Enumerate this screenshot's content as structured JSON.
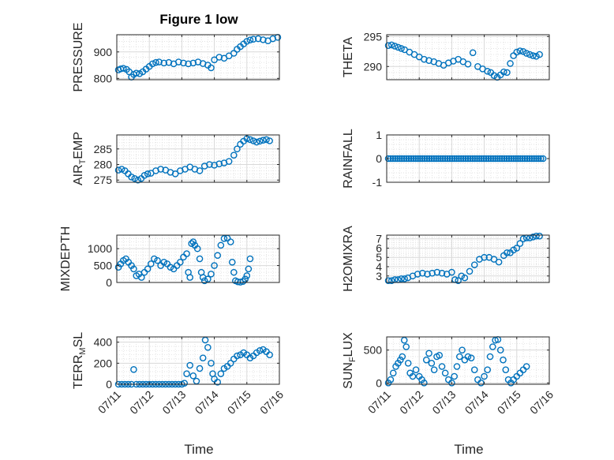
{
  "figure": {
    "title": "Figure 1 low",
    "xlabel": "Time",
    "marker_color": "#0072bd",
    "grid_color": "#d9d9d9",
    "axis_color": "#262626"
  },
  "chart_data": [
    {
      "type": "scatter",
      "ylabel": "PRESSURE",
      "ylim": [
        795,
        965
      ],
      "yticks": [
        800,
        900
      ],
      "xlim": [
        0,
        5
      ],
      "xticks": [],
      "grid": true,
      "x": [
        0.05,
        0.12,
        0.2,
        0.3,
        0.38,
        0.45,
        0.52,
        0.6,
        0.7,
        0.8,
        0.9,
        1.0,
        1.1,
        1.2,
        1.3,
        1.45,
        1.6,
        1.75,
        1.9,
        2.05,
        2.2,
        2.35,
        2.5,
        2.65,
        2.8,
        2.9,
        3.0,
        3.15,
        3.3,
        3.45,
        3.6,
        3.7,
        3.8,
        3.9,
        4.0,
        4.1,
        4.2,
        4.35,
        4.5,
        4.65,
        4.8,
        4.95
      ],
      "y": [
        832,
        836,
        838,
        834,
        825,
        805,
        815,
        820,
        818,
        825,
        835,
        845,
        855,
        860,
        862,
        858,
        860,
        855,
        862,
        858,
        855,
        858,
        862,
        856,
        850,
        840,
        870,
        880,
        876,
        885,
        895,
        910,
        920,
        930,
        940,
        945,
        948,
        950,
        946,
        942,
        950,
        955
      ]
    },
    {
      "type": "scatter",
      "ylabel": "THETA",
      "ylim": [
        287.8,
        295.3
      ],
      "yticks": [
        290,
        295
      ],
      "xlim": [
        0,
        5
      ],
      "xticks": [],
      "grid": true,
      "x": [
        0.05,
        0.15,
        0.25,
        0.35,
        0.45,
        0.55,
        0.7,
        0.85,
        1.0,
        1.15,
        1.3,
        1.45,
        1.6,
        1.75,
        1.9,
        2.05,
        2.2,
        2.35,
        2.5,
        2.65,
        2.8,
        2.95,
        3.1,
        3.2,
        3.3,
        3.4,
        3.5,
        3.6,
        3.7,
        3.8,
        3.9,
        4.0,
        4.1,
        4.2,
        4.3,
        4.4,
        4.5,
        4.6,
        4.7
      ],
      "y": [
        293.5,
        293.6,
        293.4,
        293.2,
        293.0,
        292.8,
        292.4,
        292.0,
        291.6,
        291.2,
        291.0,
        290.8,
        290.5,
        290.2,
        290.6,
        290.9,
        291.2,
        290.8,
        290.4,
        292.3,
        290.0,
        289.6,
        289.2,
        289.0,
        288.5,
        288.2,
        288.6,
        289.1,
        289.0,
        290.5,
        291.8,
        292.4,
        292.6,
        292.5,
        292.2,
        292.0,
        291.8,
        291.7,
        292.0
      ]
    },
    {
      "type": "scatter",
      "ylabel": "AIR_TEMP",
      "ylim": [
        274.3,
        289.5
      ],
      "yticks": [
        275,
        280,
        285
      ],
      "xlim": [
        0,
        5
      ],
      "xticks": [],
      "grid": true,
      "x": [
        0.05,
        0.15,
        0.25,
        0.35,
        0.45,
        0.55,
        0.65,
        0.75,
        0.85,
        0.95,
        1.05,
        1.2,
        1.35,
        1.5,
        1.65,
        1.8,
        1.95,
        2.1,
        2.25,
        2.4,
        2.55,
        2.7,
        2.85,
        3.0,
        3.15,
        3.3,
        3.45,
        3.6,
        3.7,
        3.8,
        3.9,
        4.0,
        4.1,
        4.2,
        4.3,
        4.4,
        4.5,
        4.6,
        4.7
      ],
      "y": [
        278.2,
        278.5,
        278.0,
        277.0,
        276.0,
        275.5,
        275.0,
        275.5,
        276.5,
        277.0,
        277.2,
        278.0,
        278.5,
        278.2,
        277.5,
        277.0,
        278.0,
        278.5,
        279.2,
        278.5,
        278.0,
        279.5,
        280.0,
        279.8,
        280.2,
        280.5,
        281.0,
        283.0,
        285.0,
        286.5,
        287.5,
        288.3,
        288.0,
        287.6,
        287.2,
        287.5,
        287.8,
        288.0,
        287.6
      ]
    },
    {
      "type": "scatter",
      "ylabel": "RAINFALL",
      "ylim": [
        -1,
        1
      ],
      "yticks": [
        -1,
        0,
        1
      ],
      "xlim": [
        0,
        5
      ],
      "xticks": [],
      "grid": true,
      "x_range": [
        0.05,
        4.85
      ],
      "y_constant": 0
    },
    {
      "type": "scatter",
      "ylabel": "MIXDEPTH",
      "ylim": [
        0,
        1400
      ],
      "yticks": [
        0,
        500,
        1000
      ],
      "xlim": [
        0,
        5
      ],
      "xticks": [],
      "grid": true,
      "x": [
        0.05,
        0.12,
        0.2,
        0.28,
        0.36,
        0.45,
        0.52,
        0.6,
        0.68,
        0.76,
        0.85,
        0.95,
        1.05,
        1.15,
        1.25,
        1.35,
        1.45,
        1.55,
        1.65,
        1.75,
        1.85,
        1.95,
        2.05,
        2.15,
        2.2,
        2.25,
        2.3,
        2.35,
        2.4,
        2.48,
        2.55,
        2.6,
        2.65,
        2.7,
        2.8,
        2.9,
        3.0,
        3.1,
        3.2,
        3.3,
        3.4,
        3.5,
        3.55,
        3.6,
        3.65,
        3.72,
        3.8,
        3.88,
        3.95,
        4.0,
        4.05,
        4.1
      ],
      "y": [
        450,
        550,
        650,
        700,
        600,
        500,
        400,
        200,
        250,
        150,
        300,
        400,
        550,
        700,
        650,
        500,
        600,
        550,
        450,
        400,
        500,
        600,
        750,
        850,
        300,
        150,
        1150,
        1200,
        1100,
        1000,
        700,
        300,
        150,
        50,
        100,
        250,
        500,
        800,
        1100,
        1300,
        1310,
        1200,
        600,
        300,
        50,
        20,
        10,
        30,
        100,
        200,
        400,
        700
      ]
    },
    {
      "type": "scatter",
      "ylabel": "H2OMIXRA",
      "ylim": [
        2.3,
        7.4
      ],
      "yticks": [
        3,
        4,
        5,
        6,
        7
      ],
      "xlim": [
        0,
        5
      ],
      "xticks": [],
      "grid": true,
      "x": [
        0.05,
        0.15,
        0.25,
        0.35,
        0.45,
        0.55,
        0.65,
        0.8,
        0.95,
        1.1,
        1.25,
        1.4,
        1.55,
        1.7,
        1.85,
        2.0,
        2.1,
        2.2,
        2.3,
        2.4,
        2.55,
        2.7,
        2.85,
        3.0,
        3.15,
        3.3,
        3.45,
        3.6,
        3.7,
        3.8,
        3.9,
        4.0,
        4.1,
        4.2,
        4.3,
        4.4,
        4.5,
        4.6,
        4.7
      ],
      "y": [
        2.5,
        2.5,
        2.6,
        2.6,
        2.7,
        2.7,
        2.8,
        3.0,
        3.2,
        3.3,
        3.2,
        3.3,
        3.4,
        3.3,
        3.2,
        3.4,
        2.6,
        2.5,
        3.0,
        2.8,
        3.5,
        4.2,
        4.8,
        5.0,
        5.0,
        4.8,
        4.5,
        5.2,
        5.5,
        5.5,
        5.8,
        6.0,
        6.5,
        7.0,
        7.1,
        7.1,
        7.2,
        7.3,
        7.3
      ]
    },
    {
      "type": "scatter",
      "ylabel": "TERR_MSL",
      "ylim": [
        0,
        450
      ],
      "yticks": [
        0,
        200,
        400
      ],
      "xlim": [
        0,
        5
      ],
      "xticks": [
        "07/11",
        "07/12",
        "07/13",
        "07/14",
        "07/15",
        "07/16"
      ],
      "grid": true,
      "x": [
        0.05,
        0.15,
        0.25,
        0.35,
        0.45,
        0.52,
        0.6,
        0.7,
        0.8,
        0.9,
        1.0,
        1.1,
        1.2,
        1.3,
        1.4,
        1.5,
        1.6,
        1.7,
        1.8,
        1.9,
        2.0,
        2.08,
        2.15,
        2.25,
        2.35,
        2.45,
        2.55,
        2.65,
        2.72,
        2.8,
        2.9,
        2.95,
        3.0,
        3.1,
        3.2,
        3.3,
        3.4,
        3.5,
        3.6,
        3.7,
        3.8,
        3.9,
        4.0,
        4.1,
        4.2,
        4.3,
        4.4,
        4.5,
        4.6,
        4.7
      ],
      "y": [
        0,
        0,
        0,
        0,
        0,
        140,
        0,
        0,
        0,
        0,
        0,
        0,
        0,
        0,
        0,
        0,
        0,
        0,
        0,
        0,
        0,
        10,
        100,
        180,
        80,
        30,
        150,
        250,
        420,
        350,
        200,
        100,
        50,
        20,
        100,
        150,
        170,
        200,
        240,
        270,
        280,
        300,
        280,
        250,
        270,
        300,
        320,
        330,
        310,
        280
      ]
    },
    {
      "type": "scatter",
      "ylabel": "SUN_FLUX",
      "ylim": [
        -20,
        700
      ],
      "yticks": [
        0,
        500
      ],
      "xlim": [
        0,
        5
      ],
      "xticks": [
        "07/11",
        "07/12",
        "07/13",
        "07/14",
        "07/15",
        "07/16"
      ],
      "grid": true,
      "x": [
        0.05,
        0.12,
        0.2,
        0.28,
        0.35,
        0.42,
        0.48,
        0.54,
        0.6,
        0.66,
        0.72,
        0.8,
        0.9,
        1.0,
        1.08,
        1.15,
        1.22,
        1.3,
        1.38,
        1.46,
        1.54,
        1.62,
        1.7,
        1.8,
        1.9,
        2.0,
        2.08,
        2.16,
        2.24,
        2.32,
        2.4,
        2.5,
        2.6,
        2.7,
        2.8,
        2.9,
        3.0,
        3.1,
        3.18,
        3.26,
        3.34,
        3.42,
        3.5,
        3.58,
        3.66,
        3.74,
        3.82,
        3.9,
        4.0,
        4.1,
        4.2,
        4.3
      ],
      "y": [
        0,
        50,
        150,
        250,
        300,
        350,
        400,
        650,
        550,
        300,
        150,
        100,
        200,
        100,
        50,
        0,
        350,
        450,
        300,
        200,
        400,
        420,
        250,
        150,
        50,
        0,
        100,
        250,
        400,
        500,
        350,
        400,
        380,
        200,
        50,
        0,
        100,
        200,
        400,
        550,
        650,
        660,
        500,
        350,
        200,
        50,
        0,
        50,
        100,
        150,
        200,
        250
      ]
    }
  ]
}
